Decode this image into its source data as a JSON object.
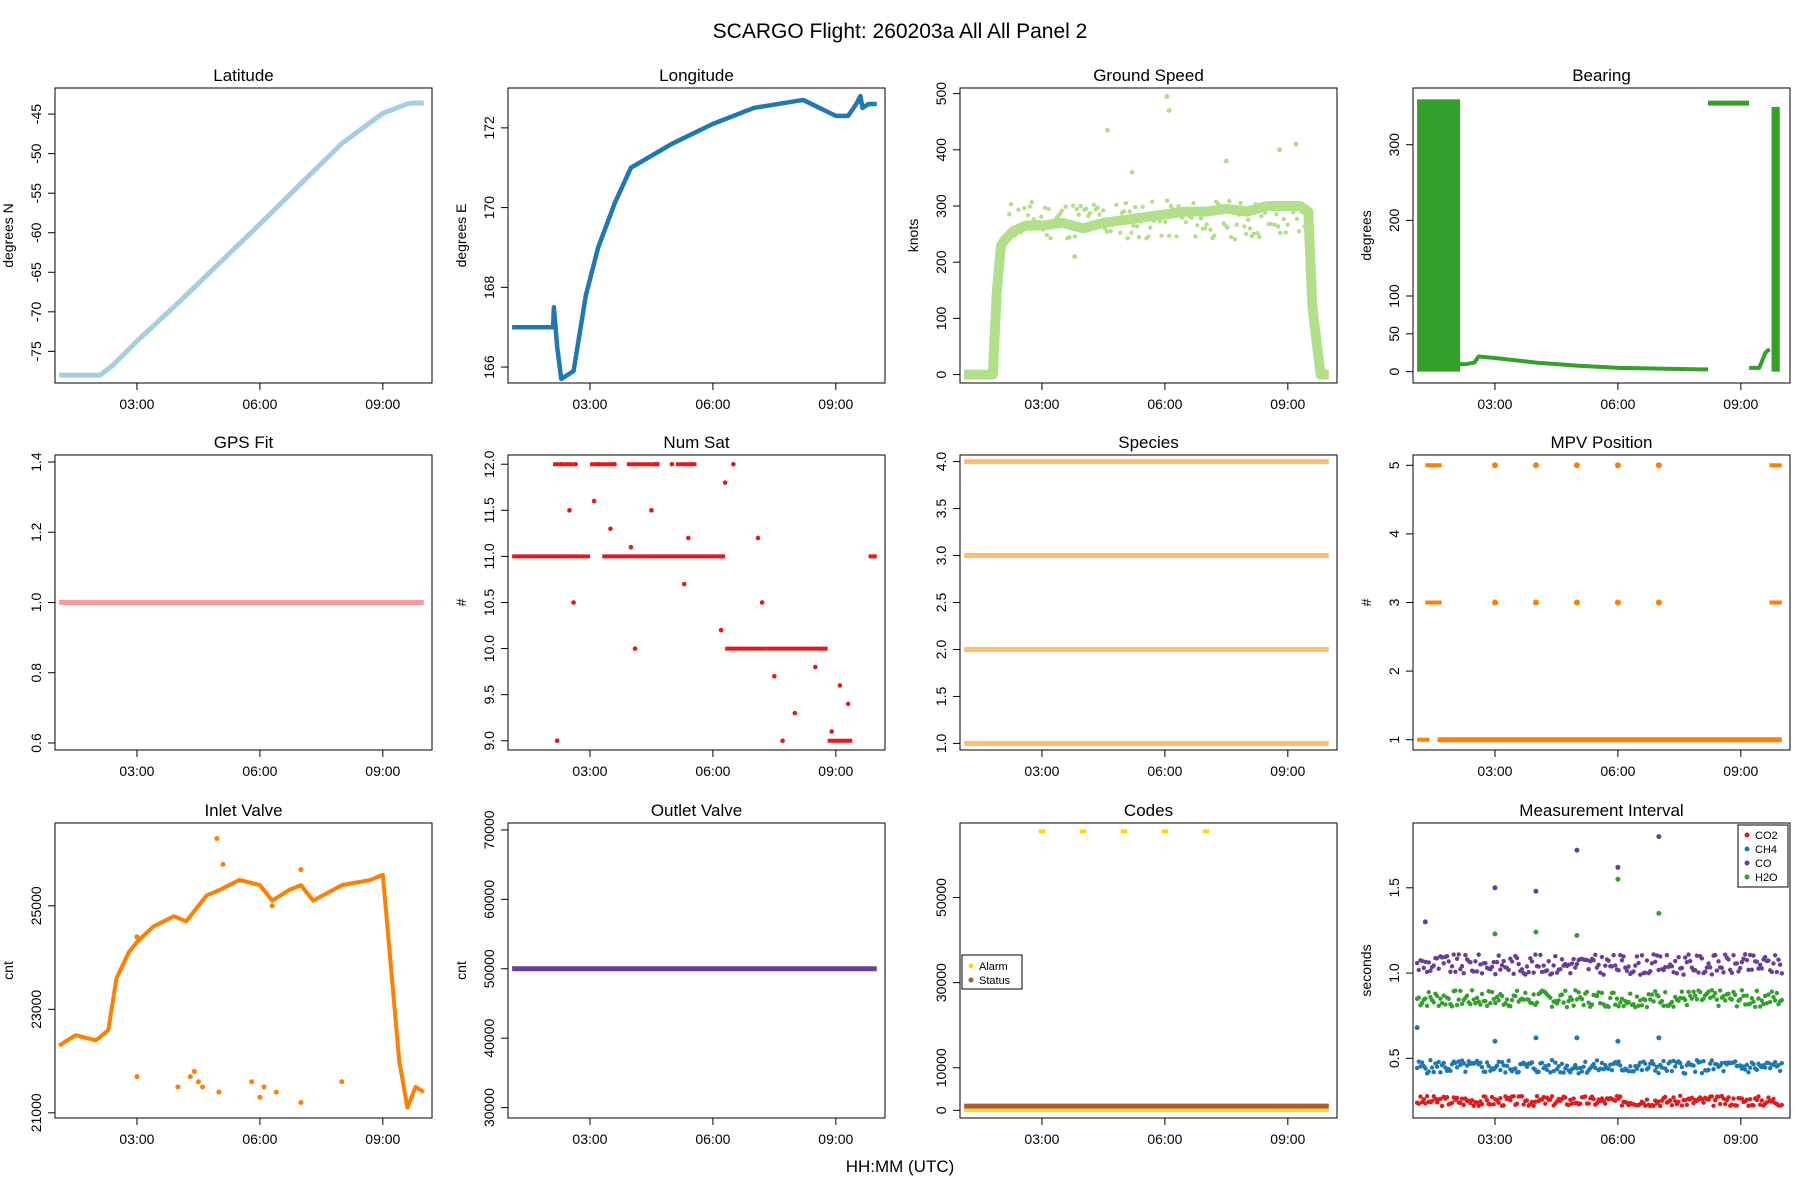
{
  "title": "SCARGO Flight: 260203a  All All  Panel 2",
  "xlabel": "HH:MM (UTC)",
  "time_ticks": [
    "03:00",
    "06:00",
    "09:00"
  ],
  "colors": {
    "latitude": "#a6cee3",
    "longitude": "#1f78b4",
    "ground_speed": "#b2df8a",
    "bearing": "#33a02c",
    "gps_fit": "#fb9a99",
    "num_sat": "#e31a1c",
    "species": "#fdbf6f",
    "mpv": "#ff7f00",
    "inlet": "#ff7f00",
    "outlet": "#6a3d9a",
    "alarm": "#ffd700",
    "status": "#b15928",
    "co2": "#e31a1c",
    "ch4": "#1f78b4",
    "co": "#6a3d9a",
    "h2o": "#33a02c"
  },
  "chart_data": [
    {
      "id": "latitude",
      "type": "line",
      "title": "Latitude",
      "ylabel": "degrees N",
      "xlim": [
        1.0,
        10.2
      ],
      "ylim": [
        -79,
        -41.7
      ],
      "yticks": [
        -75,
        -70,
        -65,
        -60,
        -55,
        -50,
        -45
      ],
      "ytick_labels": [
        "-75",
        "-70",
        "-65",
        "-60",
        "-55",
        "-50",
        "-45"
      ],
      "x": [
        1.1,
        2.1,
        2.4,
        3.0,
        4.0,
        5.0,
        6.0,
        7.0,
        8.0,
        9.0,
        9.6,
        9.75,
        10.0
      ],
      "y": [
        -78,
        -78,
        -76.8,
        -73.7,
        -68.9,
        -63.9,
        -58.9,
        -53.8,
        -48.7,
        -44.9,
        -43.7,
        -43.6,
        -43.6
      ]
    },
    {
      "id": "longitude",
      "type": "line",
      "title": "Longitude",
      "ylabel": "degrees E",
      "xlim": [
        1.0,
        10.2
      ],
      "ylim": [
        165.6,
        173.0
      ],
      "yticks": [
        166,
        168,
        170,
        172
      ],
      "ytick_labels": [
        "166",
        "168",
        "170",
        "172"
      ],
      "x": [
        1.1,
        2.1,
        2.12,
        2.2,
        2.3,
        2.6,
        2.9,
        3.2,
        3.6,
        4.0,
        5.0,
        6.0,
        7.0,
        8.2,
        9.0,
        9.3,
        9.5,
        9.6,
        9.65,
        9.8,
        10.0
      ],
      "y": [
        167.0,
        167.0,
        167.5,
        166.5,
        165.7,
        165.9,
        167.8,
        169.0,
        170.1,
        171.0,
        171.6,
        172.1,
        172.5,
        172.7,
        172.3,
        172.3,
        172.6,
        172.8,
        172.5,
        172.6,
        172.6
      ]
    },
    {
      "id": "ground_speed",
      "type": "scatter",
      "title": "Ground Speed",
      "ylabel": "knots",
      "xlim": [
        1.0,
        10.2
      ],
      "ylim": [
        -15,
        510
      ],
      "yticks": [
        0,
        100,
        200,
        300,
        400,
        500
      ],
      "ytick_labels": [
        "0",
        "100",
        "200",
        "300",
        "400",
        "500"
      ],
      "x": [
        1.1,
        1.8,
        1.9,
        2.0,
        2.1,
        2.3,
        2.6,
        3.0,
        3.5,
        4.0,
        4.5,
        5.0,
        5.5,
        6.0,
        6.5,
        7.0,
        7.5,
        8.0,
        8.5,
        9.0,
        9.3,
        9.5,
        9.6,
        9.8,
        10.0
      ],
      "y": [
        0,
        0,
        150,
        230,
        240,
        255,
        265,
        265,
        270,
        260,
        270,
        275,
        280,
        285,
        290,
        290,
        295,
        290,
        300,
        300,
        300,
        290,
        120,
        0,
        0
      ],
      "outliers_x": [
        4.6,
        6.05,
        6.1,
        3.8,
        7.5,
        8.8,
        9.2,
        5.2
      ],
      "outliers_y": [
        435,
        495,
        470,
        210,
        380,
        400,
        410,
        360
      ]
    },
    {
      "id": "bearing",
      "type": "scatter",
      "title": "Bearing",
      "ylabel": "degrees",
      "xlim": [
        1.0,
        10.2
      ],
      "ylim": [
        -15,
        375
      ],
      "yticks": [
        0,
        50,
        100,
        200,
        300
      ],
      "ytick_labels": [
        "0",
        "50",
        "100",
        "200",
        "300"
      ],
      "x": [
        2.1,
        2.3,
        2.5,
        2.6,
        3.0,
        4.0,
        5.0,
        6.0,
        7.0,
        8.0,
        8.2,
        8.2,
        9.2,
        9.6,
        9.7
      ],
      "y": [
        10,
        10,
        12,
        20,
        18,
        12,
        8,
        5,
        4,
        3,
        3,
        355,
        355,
        25,
        30
      ]
    },
    {
      "id": "gps_fit",
      "type": "line",
      "title": "GPS Fit",
      "ylabel": "",
      "xlim": [
        1.0,
        10.2
      ],
      "ylim": [
        0.58,
        1.42
      ],
      "yticks": [
        0.6,
        0.8,
        1.0,
        1.2,
        1.4
      ],
      "ytick_labels": [
        "0.6",
        "0.8",
        "1.0",
        "1.2",
        "1.4"
      ],
      "x": [
        1.1,
        10.0
      ],
      "y": [
        1.0,
        1.0
      ]
    },
    {
      "id": "num_sat",
      "type": "scatter",
      "title": "Num Sat",
      "ylabel": "#",
      "xlim": [
        1.0,
        10.2
      ],
      "ylim": [
        8.9,
        12.1
      ],
      "yticks": [
        9.0,
        9.5,
        10.0,
        10.5,
        11.0,
        11.5,
        12.0
      ],
      "ytick_labels": [
        "9.0",
        "9.5",
        "10.0",
        "10.5",
        "11.0",
        "11.5",
        "12.0"
      ],
      "x": [
        2.2,
        2.3,
        2.5,
        2.6,
        2.65,
        3.1,
        3.2,
        3.5,
        3.6,
        4.0,
        4.1,
        4.5,
        4.6,
        5.0,
        5.3,
        5.4,
        5.5,
        6.2,
        6.3,
        6.5,
        7.1,
        7.2,
        7.5,
        7.7,
        8.0,
        8.5,
        8.9,
        9.1,
        9.3
      ],
      "y": [
        9.0,
        12.0,
        11.5,
        10.5,
        12.0,
        11.6,
        12.0,
        11.3,
        12.0,
        11.1,
        10.0,
        11.5,
        12.0,
        12.0,
        10.7,
        11.2,
        12.0,
        10.2,
        11.8,
        12.0,
        11.2,
        10.5,
        9.7,
        9.0,
        9.3,
        9.8,
        9.1,
        9.6,
        9.4
      ]
    },
    {
      "id": "species",
      "type": "line",
      "title": "Species",
      "ylabel": "",
      "xlim": [
        1.0,
        10.2
      ],
      "ylim": [
        0.93,
        4.07
      ],
      "yticks": [
        1.0,
        1.5,
        2.0,
        2.5,
        3.0,
        3.5,
        4.0
      ],
      "ytick_labels": [
        "1.0",
        "1.5",
        "2.0",
        "2.5",
        "3.0",
        "3.5",
        "4.0"
      ],
      "levels": [
        1,
        2,
        3,
        4
      ]
    },
    {
      "id": "mpv",
      "type": "scatter",
      "title": "MPV Position",
      "ylabel": "#",
      "xlim": [
        1.0,
        10.2
      ],
      "ylim": [
        0.85,
        5.15
      ],
      "yticks": [
        1,
        2,
        3,
        4,
        5
      ],
      "ytick_labels": [
        "1",
        "2",
        "3",
        "4",
        "5"
      ],
      "x": [
        3.0,
        4.0,
        5.0,
        6.0,
        7.0,
        3.0,
        4.0,
        5.0,
        6.0,
        7.0
      ],
      "y": [
        5,
        5,
        5,
        5,
        5,
        3,
        3,
        3,
        3,
        3
      ]
    },
    {
      "id": "inlet",
      "type": "scatter",
      "title": "Inlet Valve",
      "ylabel": "cnt",
      "xlim": [
        1.0,
        10.2
      ],
      "ylim": [
        20900,
        26600
      ],
      "yticks": [
        21000,
        23000,
        25000
      ],
      "ytick_labels": [
        "21000",
        "23000",
        "25000"
      ],
      "x": [
        1.1,
        1.5,
        2.0,
        2.3,
        2.5,
        2.8,
        3.0,
        3.4,
        3.9,
        4.2,
        4.7,
        5.0,
        5.5,
        6.0,
        6.3,
        6.7,
        7.0,
        7.3,
        8.0,
        8.7,
        9.0,
        9.2,
        9.4,
        9.6,
        9.8,
        10.0
      ],
      "y": [
        22300,
        22500,
        22400,
        22600,
        23600,
        24100,
        24300,
        24600,
        24800,
        24700,
        25200,
        25300,
        25500,
        25400,
        25100,
        25300,
        25400,
        25100,
        25400,
        25500,
        25600,
        23800,
        22000,
        21100,
        21500,
        21400
      ],
      "low_x": [
        3.0,
        4.0,
        4.3,
        4.4,
        4.5,
        4.6,
        5.0,
        5.8,
        6.0,
        6.1,
        6.4,
        7.0,
        8.0
      ],
      "low_y": [
        21700,
        21500,
        21700,
        21800,
        21600,
        21500,
        21400,
        21600,
        21300,
        21500,
        21400,
        21200,
        21600
      ],
      "spike_x": [
        4.95,
        5.1,
        7.0,
        3.0,
        6.3
      ],
      "spike_y": [
        26300,
        25800,
        25700,
        24400,
        25000
      ]
    },
    {
      "id": "outlet",
      "type": "line",
      "title": "Outlet Valve",
      "ylabel": "cnt",
      "xlim": [
        1.0,
        10.2
      ],
      "ylim": [
        28500,
        71000
      ],
      "yticks": [
        30000,
        40000,
        50000,
        60000,
        70000
      ],
      "ytick_labels": [
        "30000",
        "40000",
        "50000",
        "60000",
        "70000"
      ],
      "x": [
        1.1,
        10.0
      ],
      "y": [
        50000,
        50000
      ]
    },
    {
      "id": "codes",
      "type": "scatter",
      "title": "Codes",
      "ylabel": "",
      "xlim": [
        1.0,
        10.2
      ],
      "ylim": [
        -1800,
        67500
      ],
      "yticks": [
        0,
        10000,
        30000,
        50000
      ],
      "ytick_labels": [
        "0",
        "10000",
        "30000",
        "50000"
      ],
      "alarm_x": [
        3.0,
        4.0,
        5.0,
        6.0,
        7.0
      ],
      "alarm_y": [
        65535,
        65535,
        65535,
        65535,
        65535
      ],
      "legend": [
        "Alarm",
        "Status"
      ]
    },
    {
      "id": "meas_interval",
      "type": "scatter",
      "title": "Measurement Interval",
      "ylabel": "seconds",
      "xlim": [
        1.0,
        10.2
      ],
      "ylim": [
        0.15,
        1.88
      ],
      "yticks": [
        0.5,
        1.0,
        1.5
      ],
      "ytick_labels": [
        "0.5",
        "1.0",
        "1.5"
      ],
      "legend": [
        "CO2",
        "CH4",
        "CO",
        "H2O"
      ],
      "series_levels": {
        "co2": 0.25,
        "ch4": 0.45,
        "co": 1.05,
        "h2o": 0.85
      },
      "co_spikes_x": [
        3.0,
        4.0,
        5.0,
        6.0,
        7.0,
        1.3
      ],
      "co_spikes_y": [
        1.5,
        1.48,
        1.72,
        1.62,
        1.8,
        1.3
      ],
      "h2o_spikes_x": [
        3.0,
        4.0,
        5.0,
        6.0,
        7.0
      ],
      "h2o_spikes_y": [
        1.23,
        1.24,
        1.22,
        1.55,
        1.35
      ],
      "ch4_spikes_x": [
        1.1,
        3.0,
        4.0,
        5.0,
        6.0,
        7.0
      ],
      "ch4_spikes_y": [
        0.68,
        0.6,
        0.62,
        0.62,
        0.6,
        0.62
      ]
    }
  ]
}
